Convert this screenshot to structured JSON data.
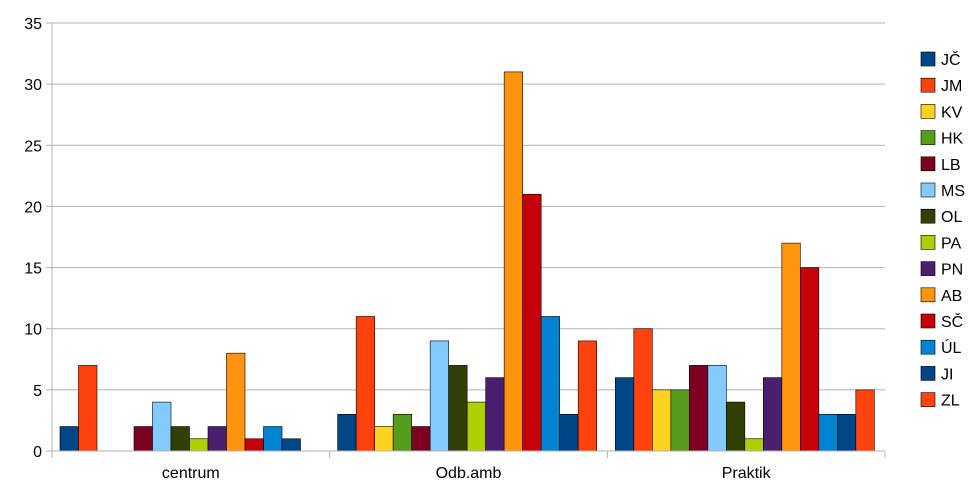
{
  "chart_data": {
    "type": "bar",
    "categories": [
      "centrum",
      "Odb.amb",
      "Praktik"
    ],
    "ylim": [
      0,
      35
    ],
    "yticks": [
      0,
      5,
      10,
      15,
      20,
      25,
      30,
      35
    ],
    "grid": true,
    "legend_position": "right",
    "series": [
      {
        "name": "JČ",
        "color": "#004586",
        "values": [
          2,
          3,
          6
        ]
      },
      {
        "name": "JM",
        "color": "#ff420e",
        "values": [
          7,
          11,
          10
        ]
      },
      {
        "name": "KV",
        "color": "#ffd320",
        "values": [
          0,
          2,
          5
        ]
      },
      {
        "name": "HK",
        "color": "#579d1c",
        "values": [
          0,
          3,
          5
        ]
      },
      {
        "name": "LB",
        "color": "#7e0021",
        "values": [
          2,
          2,
          7
        ]
      },
      {
        "name": "MS",
        "color": "#83caff",
        "values": [
          4,
          9,
          7
        ]
      },
      {
        "name": "OL",
        "color": "#314004",
        "values": [
          2,
          7,
          4
        ]
      },
      {
        "name": "PA",
        "color": "#aecf00",
        "values": [
          1,
          4,
          1
        ]
      },
      {
        "name": "PN",
        "color": "#4b1f6f",
        "values": [
          2,
          6,
          6
        ]
      },
      {
        "name": "AB",
        "color": "#ff950e",
        "values": [
          8,
          31,
          17
        ]
      },
      {
        "name": "SČ",
        "color": "#c5000b",
        "values": [
          1,
          21,
          15
        ]
      },
      {
        "name": "ÚL",
        "color": "#0084d1",
        "values": [
          2,
          11,
          3
        ]
      },
      {
        "name": "JI",
        "color": "#004586",
        "values": [
          1,
          3,
          3
        ]
      },
      {
        "name": "ZL",
        "color": "#ff420e",
        "values": [
          0,
          9,
          5
        ]
      }
    ]
  }
}
